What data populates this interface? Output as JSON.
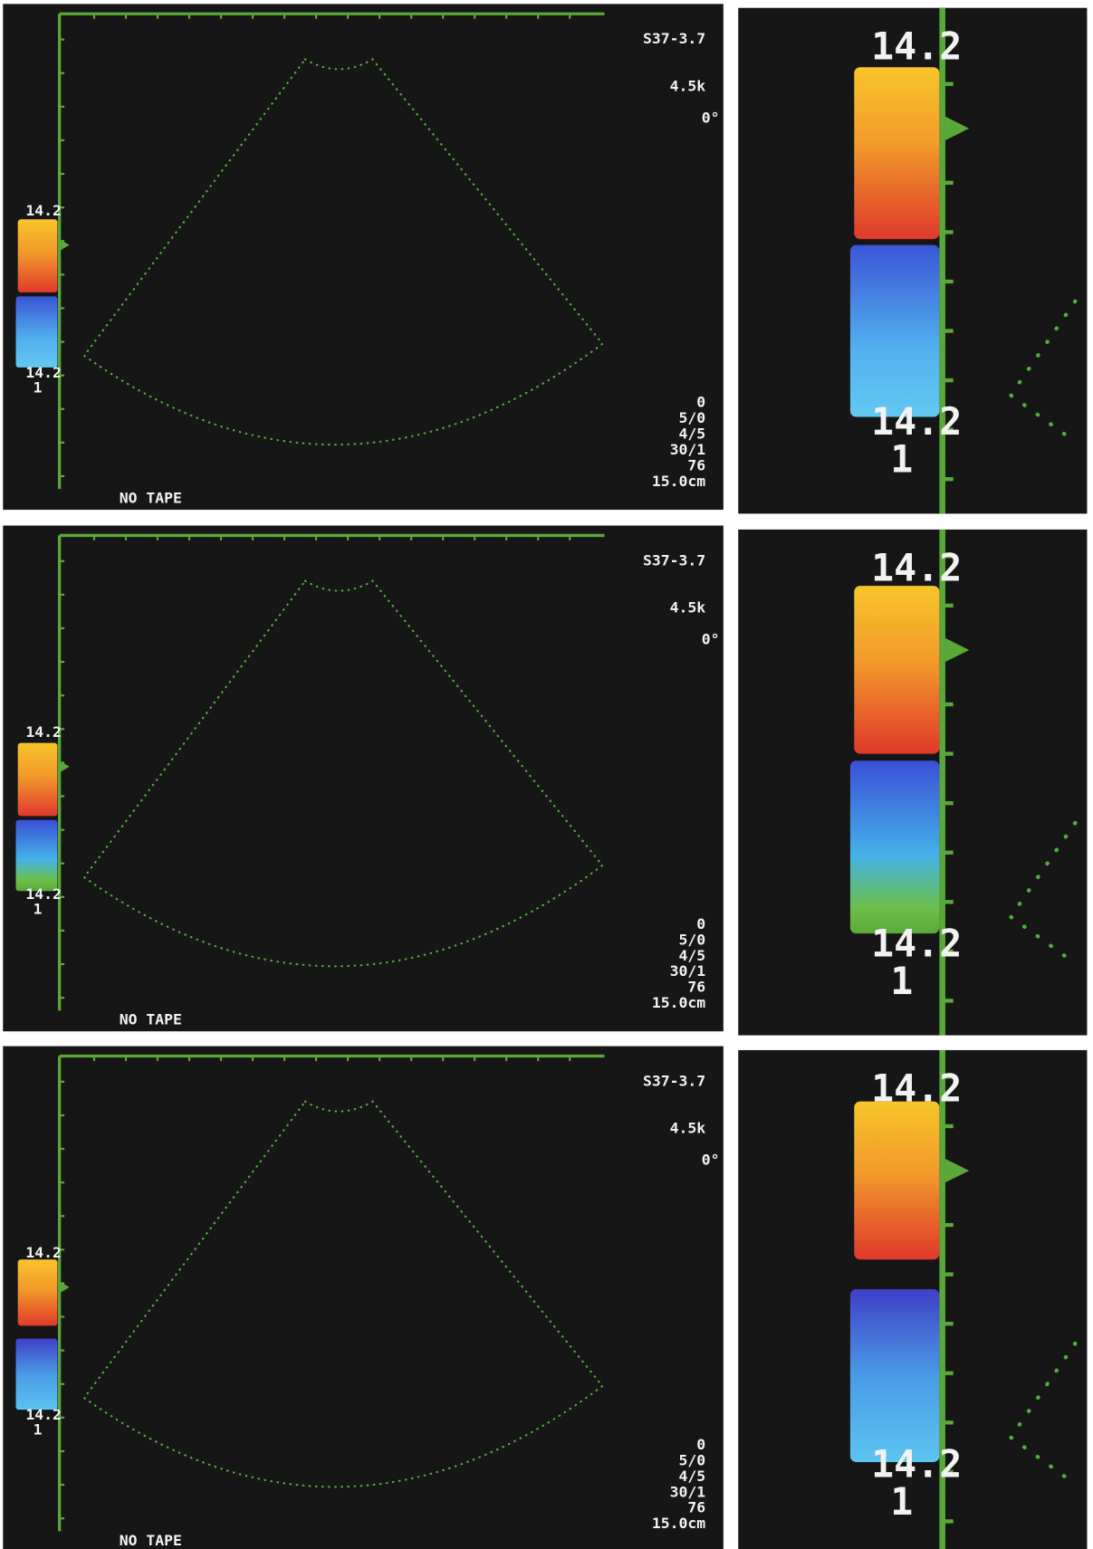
{
  "panels": [
    {
      "main": {
        "probe": "S37-3.7",
        "frequency": "4.5k",
        "angle": "0°",
        "scale_top": "14.2",
        "scale_bottom": "14.2",
        "scale_sub": "1",
        "settings": [
          "0",
          "5/0",
          "4/5",
          "30/1",
          "76",
          "15.0cm"
        ],
        "status": "NO TAPE"
      },
      "zoom": {
        "scale_top": "14.2",
        "scale_bottom": "14.2",
        "scale_sub": "1"
      }
    },
    {
      "main": {
        "probe": "S37-3.7",
        "frequency": "4.5k",
        "angle": "0°",
        "scale_top": "14.2",
        "scale_bottom": "14.2",
        "scale_sub": "1",
        "settings": [
          "0",
          "5/0",
          "4/5",
          "30/1",
          "76",
          "15.0cm"
        ],
        "status": "NO TAPE"
      },
      "zoom": {
        "scale_top": "14.2",
        "scale_bottom": "14.2",
        "scale_sub": "1"
      }
    },
    {
      "main": {
        "probe": "S37-3.7",
        "frequency": "4.5k",
        "angle": "0°",
        "scale_top": "14.2",
        "scale_bottom": "14.2",
        "scale_sub": "1",
        "settings": [
          "0",
          "5/0",
          "4/5",
          "30/1",
          "76",
          "15.0cm"
        ],
        "status": "NO TAPE"
      },
      "zoom": {
        "scale_top": "14.2",
        "scale_bottom": "14.2",
        "scale_sub": "1"
      }
    }
  ]
}
